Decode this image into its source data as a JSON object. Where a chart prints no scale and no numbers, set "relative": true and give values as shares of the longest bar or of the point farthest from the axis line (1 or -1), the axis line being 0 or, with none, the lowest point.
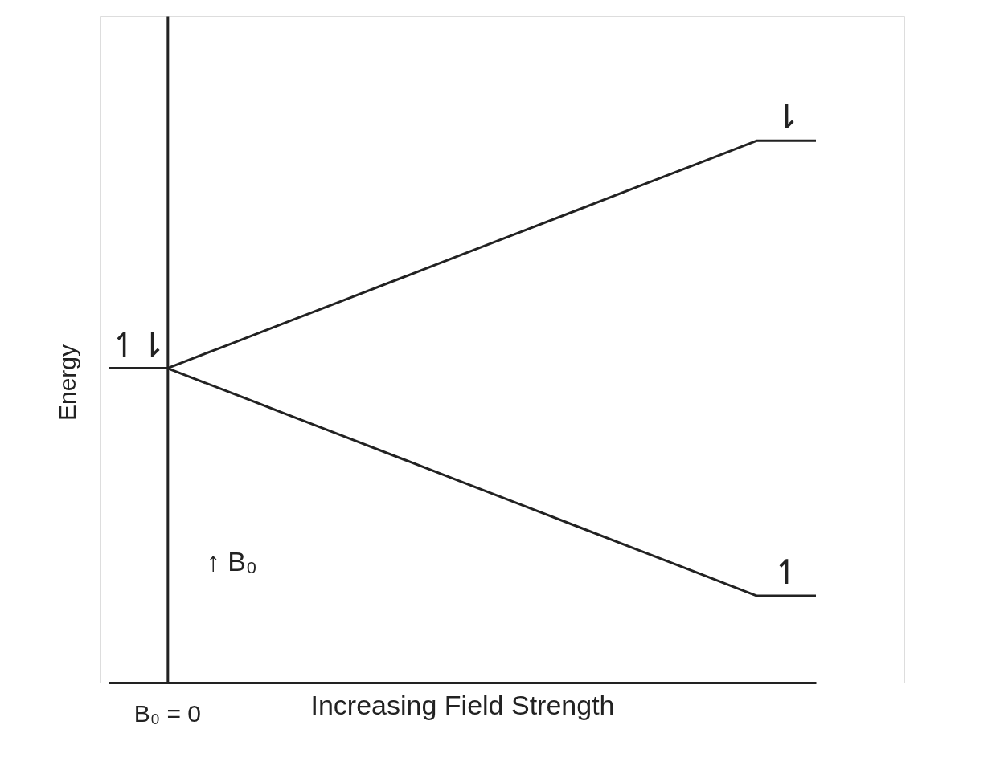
{
  "chart_data": {
    "type": "line",
    "relative": true,
    "xlabel": "Increasing Field Strength",
    "ylabel": "Energy",
    "categories": [
      null,
      null,
      null,
      null,
      null,
      null,
      null,
      null,
      null,
      null,
      null,
      null,
      null
    ],
    "series": [
      {
        "color": "#222222",
        "values": [
          0.58,
          0.58,
          0.622,
          0.664,
          0.706,
          0.748,
          0.79,
          0.832,
          0.874,
          0.916,
          0.958,
          1,
          1
        ]
      },
      {
        "color": "#222222",
        "values": [
          0.58,
          0.58,
          0.538,
          0.496,
          0.454,
          0.412,
          0.37,
          0.328,
          0.286,
          0.244,
          0.202,
          0.16,
          0.16
        ]
      }
    ],
    "annotations": [
      "↿⇂",
      "⇂",
      "↿",
      "B₀ = 0",
      "↑ B₀"
    ],
    "grid": false,
    "legend": false,
    "marker": "none",
    "line_style": "solid"
  }
}
